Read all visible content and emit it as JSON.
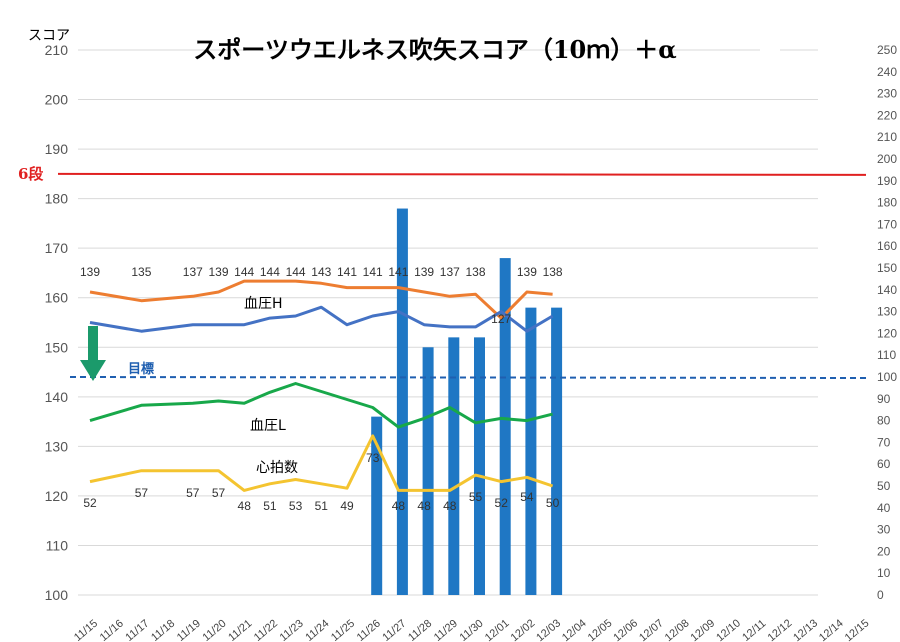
{
  "chart_data": {
    "type": "bar+line",
    "title": "スポーツウエルネス吹矢スコア（10ｍ）＋α",
    "y_axis_left": {
      "label": "スコア",
      "min": 100,
      "max": 210,
      "step": 10
    },
    "y_axis_right": {
      "min": 0,
      "max": 250,
      "step": 10
    },
    "categories": [
      "11/15",
      "11/16",
      "11/17",
      "11/18",
      "11/19",
      "11/20",
      "11/21",
      "11/22",
      "11/23",
      "11/24",
      "11/25",
      "11/26",
      "11/27",
      "11/28",
      "11/29",
      "11/30",
      "12/01",
      "12/02",
      "12/03",
      "12/04",
      "12/05",
      "12/06",
      "12/07",
      "12/08",
      "12/09",
      "12/10",
      "12/11",
      "12/12",
      "12/13",
      "12/14",
      "12/15"
    ],
    "score_bars": [
      null,
      null,
      null,
      null,
      null,
      null,
      null,
      null,
      null,
      null,
      null,
      136,
      178,
      150,
      152,
      152,
      168,
      158,
      158,
      null,
      null,
      null,
      null,
      null,
      null,
      null,
      null,
      null,
      null,
      null,
      null
    ],
    "series": [
      {
        "name": "血圧H",
        "axis": "right",
        "color": "#ed7d31",
        "values": [
          139,
          null,
          135,
          null,
          137,
          139,
          144,
          144,
          144,
          143,
          141,
          141,
          141,
          139,
          137,
          138,
          127,
          139,
          138,
          null,
          null,
          null,
          null,
          null,
          null,
          null,
          null,
          null,
          null,
          null,
          null
        ],
        "labels": [
          "139",
          "",
          "135",
          "",
          "137",
          "139",
          "144",
          "144",
          "144",
          "143",
          "141",
          "141",
          "141",
          "139",
          "137",
          "138",
          "127",
          "139",
          "138",
          "",
          "",
          "",
          "",
          "",
          "",
          "",
          "",
          "",
          "",
          "",
          ""
        ]
      },
      {
        "name": "",
        "axis": "right",
        "color": "#4472c4",
        "values": [
          125,
          null,
          121,
          null,
          124,
          124,
          124,
          127,
          128,
          132,
          124,
          128,
          130,
          124,
          123,
          123,
          130,
          121,
          128,
          null,
          null,
          null,
          null,
          null,
          null,
          null,
          null,
          null,
          null,
          null,
          null
        ]
      },
      {
        "name": "血圧L",
        "axis": "right",
        "color": "#18a84a",
        "values": [
          80,
          null,
          87,
          null,
          88,
          89,
          88,
          93,
          97,
          null,
          null,
          86,
          77,
          81,
          86,
          79,
          81,
          80,
          83,
          null,
          null,
          null,
          null,
          null,
          null,
          null,
          null,
          null,
          null,
          null,
          null
        ]
      },
      {
        "name": "心拍数",
        "axis": "right",
        "color": "#f4c430",
        "values": [
          52,
          null,
          57,
          null,
          57,
          57,
          48,
          51,
          53,
          51,
          49,
          73,
          48,
          48,
          48,
          55,
          52,
          54,
          50,
          null,
          null,
          null,
          null,
          null,
          null,
          null,
          null,
          null,
          null,
          null,
          null
        ],
        "labels": [
          "52",
          "",
          "57",
          "",
          "57",
          "57",
          "48",
          "51",
          "53",
          "51",
          "49",
          "73",
          "48",
          "48",
          "48",
          "55",
          "52",
          "54",
          "50",
          "",
          "",
          "",
          "",
          "",
          "",
          "",
          "",
          "",
          "",
          "",
          ""
        ]
      }
    ],
    "reference_lines": [
      {
        "label": "6段",
        "axis": "left",
        "value": 185,
        "color": "#e02020"
      },
      {
        "label": "目標",
        "axis": "right",
        "value": 100,
        "color": "#1f5fb0"
      }
    ],
    "grid": true,
    "legend": "none"
  }
}
